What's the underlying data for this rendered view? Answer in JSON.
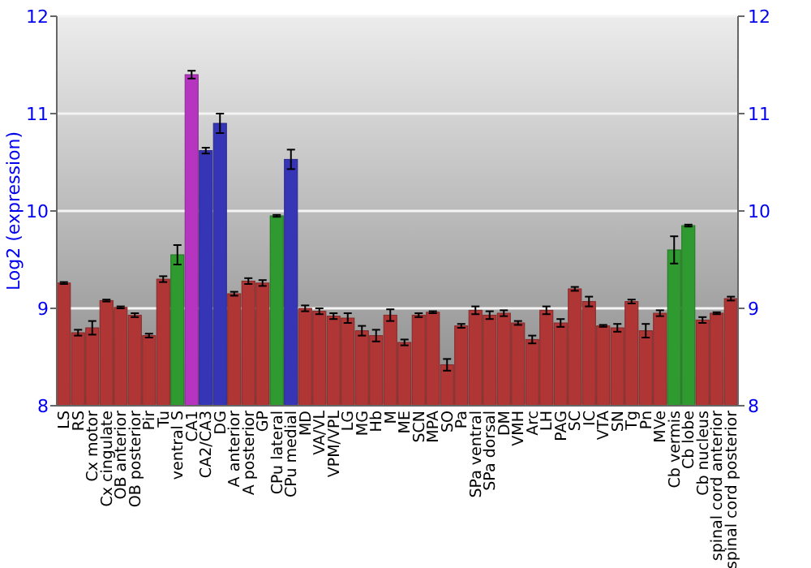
{
  "chart_data": {
    "type": "bar",
    "ylabel": "Log2 (expression)",
    "categories": [
      "LS",
      "RS",
      "Cx motor",
      "Cx cingulate",
      "OB anterior",
      "OB posterior",
      "Pir",
      "Tu",
      "ventral S",
      "CA1",
      "CA2/CA3",
      "DG",
      "A anterior",
      "A posterior",
      "GP",
      "CPu lateral",
      "CPu medial",
      "MD",
      "VA/VL",
      "VPM/VPL",
      "LG",
      "MG",
      "Hb",
      "M",
      "ME",
      "SCN",
      "MPA",
      "SO",
      "Pa",
      "SPa ventral",
      "SPa dorsal",
      "DM",
      "VMH",
      "Arc",
      "LH",
      "PAG",
      "SC",
      "IC",
      "VTA",
      "SN",
      "Tg",
      "Pn",
      "MVe",
      "Cb vermis",
      "Cb lobe",
      "Cb nucleus",
      "spinal cord anterior",
      "spinal cord posterior"
    ],
    "values": [
      9.26,
      8.75,
      8.8,
      9.08,
      9.01,
      8.93,
      8.72,
      9.3,
      9.55,
      11.4,
      10.62,
      10.9,
      9.15,
      9.28,
      9.26,
      9.95,
      10.53,
      9.0,
      8.97,
      8.92,
      8.9,
      8.77,
      8.72,
      8.93,
      8.65,
      8.93,
      8.96,
      8.42,
      8.82,
      8.98,
      8.93,
      8.95,
      8.85,
      8.68,
      8.98,
      8.85,
      9.2,
      9.07,
      8.82,
      8.8,
      9.07,
      8.77,
      8.95,
      9.6,
      9.85,
      8.88,
      8.95,
      9.1
    ],
    "errors": [
      0.01,
      0.03,
      0.07,
      0.01,
      0.01,
      0.02,
      0.02,
      0.03,
      0.1,
      0.04,
      0.03,
      0.1,
      0.02,
      0.03,
      0.03,
      0.01,
      0.1,
      0.03,
      0.03,
      0.03,
      0.05,
      0.05,
      0.06,
      0.06,
      0.03,
      0.02,
      0.01,
      0.06,
      0.02,
      0.04,
      0.04,
      0.03,
      0.02,
      0.04,
      0.04,
      0.04,
      0.02,
      0.05,
      0.01,
      0.04,
      0.02,
      0.07,
      0.03,
      0.14,
      0.01,
      0.03,
      0.01,
      0.02
    ],
    "colors": [
      "#b03535",
      "#b03535",
      "#b03535",
      "#b03535",
      "#b03535",
      "#b03535",
      "#b03535",
      "#b03535",
      "#2f9a2f",
      "#b535c0",
      "#3535b5",
      "#3535b5",
      "#b03535",
      "#b03535",
      "#b03535",
      "#2f9a2f",
      "#3535b5",
      "#b03535",
      "#b03535",
      "#b03535",
      "#b03535",
      "#b03535",
      "#b03535",
      "#b03535",
      "#b03535",
      "#b03535",
      "#b03535",
      "#b03535",
      "#b03535",
      "#b03535",
      "#b03535",
      "#b03535",
      "#b03535",
      "#b03535",
      "#b03535",
      "#b03535",
      "#b03535",
      "#b03535",
      "#b03535",
      "#b03535",
      "#b03535",
      "#b03535",
      "#b03535",
      "#2f9a2f",
      "#2f9a2f",
      "#b03535",
      "#b03535",
      "#b03535"
    ],
    "ylim": [
      8,
      12
    ],
    "yticks": [
      8,
      9,
      10,
      11,
      12
    ],
    "y2lim": [
      8,
      12
    ],
    "y2ticks": [
      8,
      9,
      10,
      11,
      12
    ],
    "grid": "y"
  }
}
